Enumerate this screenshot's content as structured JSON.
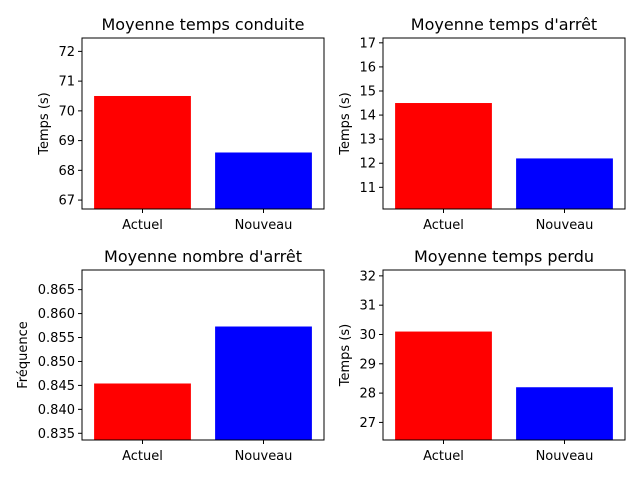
{
  "chart_data": [
    {
      "type": "bar",
      "title": "Moyenne temps conduite",
      "ylabel": "Temps (s)",
      "categories": [
        "Actuel",
        "Nouveau"
      ],
      "values": [
        70.5,
        68.6
      ],
      "colors": [
        "#ff0000",
        "#0000ff"
      ],
      "ylim": [
        66.7,
        72.45
      ],
      "yticks": [
        67,
        68,
        69,
        70,
        71,
        72
      ],
      "ytick_labels": [
        "67",
        "68",
        "69",
        "70",
        "71",
        "72"
      ]
    },
    {
      "type": "bar",
      "title": "Moyenne temps d'arrêt",
      "ylabel": "Temps (s)",
      "categories": [
        "Actuel",
        "Nouveau"
      ],
      "values": [
        14.5,
        12.2
      ],
      "colors": [
        "#ff0000",
        "#0000ff"
      ],
      "ylim": [
        10.1,
        17.2
      ],
      "yticks": [
        11,
        12,
        13,
        14,
        15,
        16,
        17
      ],
      "ytick_labels": [
        "11",
        "12",
        "13",
        "14",
        "15",
        "16",
        "17"
      ]
    },
    {
      "type": "bar",
      "title": "Moyenne nombre d'arrêt",
      "ylabel": "Fréquence",
      "categories": [
        "Actuel",
        "Nouveau"
      ],
      "values": [
        0.8454,
        0.8573
      ],
      "colors": [
        "#ff0000",
        "#0000ff"
      ],
      "ylim": [
        0.8336,
        0.8691
      ],
      "yticks": [
        0.835,
        0.84,
        0.845,
        0.85,
        0.855,
        0.86,
        0.865
      ],
      "ytick_labels": [
        "0.835",
        "0.840",
        "0.845",
        "0.850",
        "0.855",
        "0.860",
        "0.865"
      ]
    },
    {
      "type": "bar",
      "title": "Moyenne temps perdu",
      "ylabel": "Temps (s)",
      "categories": [
        "Actuel",
        "Nouveau"
      ],
      "values": [
        30.1,
        28.2
      ],
      "colors": [
        "#ff0000",
        "#0000ff"
      ],
      "ylim": [
        26.4,
        32.2
      ],
      "yticks": [
        27,
        28,
        29,
        30,
        31,
        32
      ],
      "ytick_labels": [
        "27",
        "28",
        "29",
        "30",
        "31",
        "32"
      ]
    }
  ]
}
